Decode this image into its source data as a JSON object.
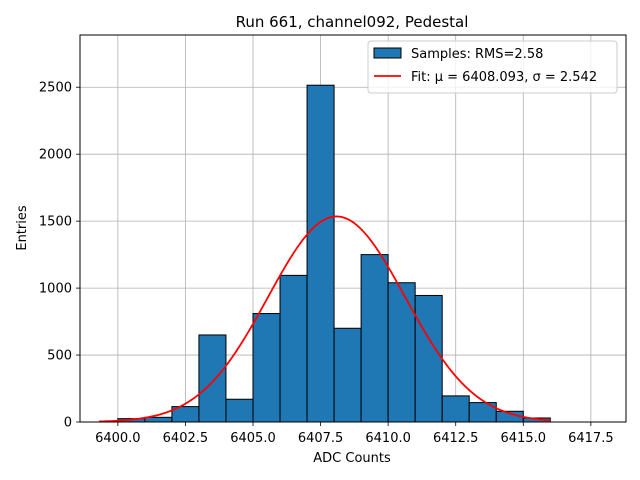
{
  "chart_data": {
    "type": "bar",
    "title": "Run 661, channel092, Pedestal",
    "xlabel": "ADC Counts",
    "ylabel": "Entries",
    "xlim": [
      6398.6,
      6418.8
    ],
    "ylim": [
      0,
      2890
    ],
    "grid": true,
    "xticks": [
      6400.0,
      6402.5,
      6405.0,
      6407.5,
      6410.0,
      6412.5,
      6415.0,
      6417.5
    ],
    "xtick_labels": [
      "6400.0",
      "6402.5",
      "6405.0",
      "6407.5",
      "6410.0",
      "6412.5",
      "6415.0",
      "6417.5"
    ],
    "yticks": [
      0,
      500,
      1000,
      1500,
      2000,
      2500
    ],
    "ytick_labels": [
      "0",
      "500",
      "1000",
      "1500",
      "2000",
      "2500"
    ],
    "bin_edges": [
      6400,
      6401,
      6402,
      6403,
      6404,
      6405,
      6406,
      6407,
      6408,
      6409,
      6410,
      6411,
      6412,
      6413,
      6414,
      6415,
      6416
    ],
    "counts": [
      25,
      35,
      115,
      650,
      170,
      810,
      1095,
      2515,
      700,
      1250,
      1040,
      945,
      195,
      145,
      80,
      30
    ],
    "fit": {
      "mu": 6408.093,
      "sigma": 2.542,
      "amplitude": 1535,
      "x_range": [
        6399.3,
        6416.0
      ]
    },
    "legend": {
      "position": "top-right",
      "entries": [
        {
          "label": "Samples: RMS=2.58",
          "kind": "patch",
          "color": "#1f77b4"
        },
        {
          "label": "Fit: μ = 6408.093, σ = 2.542",
          "kind": "line",
          "color": "#ff0000"
        }
      ]
    },
    "colors": {
      "bar_fill": "#1f77b4",
      "bar_edge": "#000000",
      "fit_line": "#ff0000",
      "grid": "#b0b0b0"
    }
  }
}
